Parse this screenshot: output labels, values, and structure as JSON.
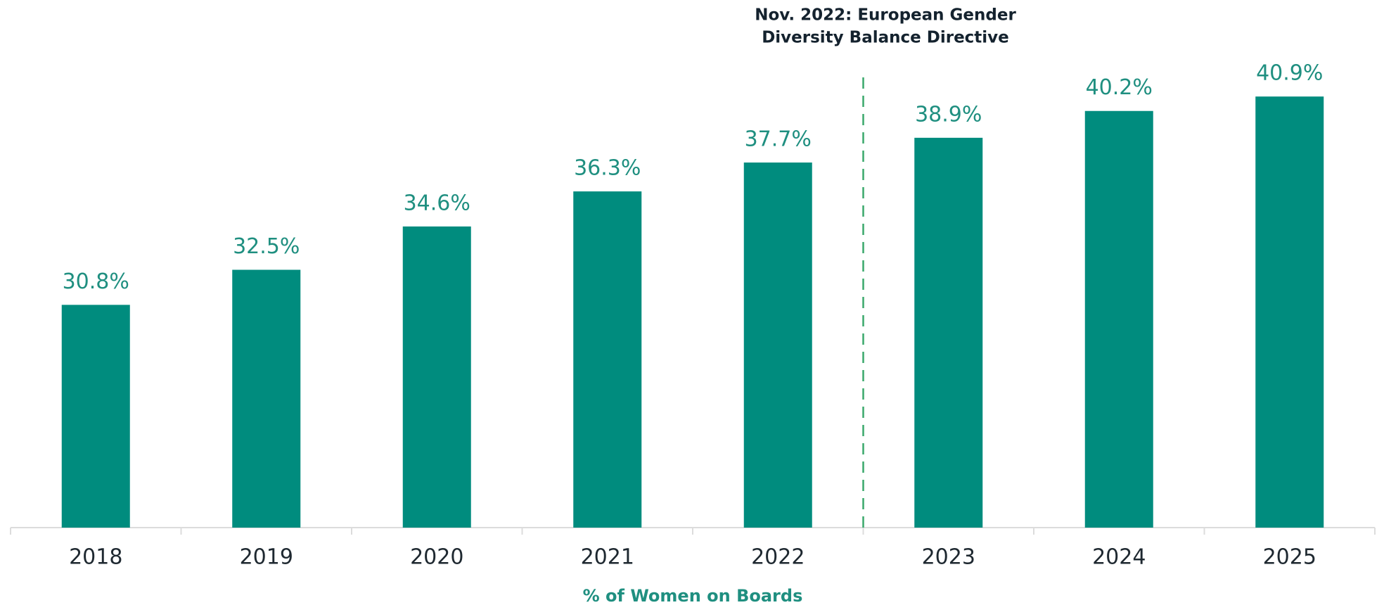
{
  "chart_data": {
    "type": "bar",
    "categories": [
      "2018",
      "2019",
      "2020",
      "2021",
      "2022",
      "2023",
      "2024",
      "2025"
    ],
    "values": [
      30.8,
      32.5,
      34.6,
      36.3,
      37.7,
      38.9,
      40.2,
      40.9
    ],
    "value_labels": [
      "30.8%",
      "32.5%",
      "34.6%",
      "36.3%",
      "37.7%",
      "38.9%",
      "40.2%",
      "40.9%"
    ],
    "color": "#008c7e",
    "ylim": [
      20,
      45
    ],
    "x_label": "% of Women on Boards",
    "annotation": [
      "Nov. 2022: European Gender",
      "Diversity Balance Directive"
    ]
  }
}
